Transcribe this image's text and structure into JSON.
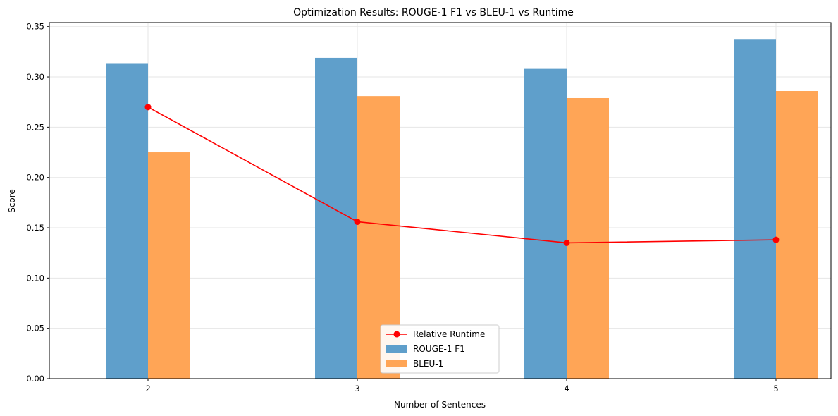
{
  "chart_data": {
    "type": "bar",
    "title": "Optimization Results: ROUGE-1 F1 vs BLEU-1 vs Runtime",
    "xlabel": "Number of Sentences",
    "ylabel": "Score",
    "categories": [
      "2",
      "3",
      "4",
      "5"
    ],
    "ylim": [
      0,
      0.354
    ],
    "yticks": [
      "0.00",
      "0.05",
      "0.10",
      "0.15",
      "0.20",
      "0.25",
      "0.30",
      "0.35"
    ],
    "grid": true,
    "legend_position": "bottom-center",
    "series": [
      {
        "name": "ROUGE-1 F1",
        "type": "bar",
        "color": "#5f9fcb",
        "values": [
          0.313,
          0.319,
          0.308,
          0.337
        ]
      },
      {
        "name": "BLEU-1",
        "type": "bar",
        "color": "#ffa556",
        "values": [
          0.225,
          0.281,
          0.279,
          0.286
        ]
      },
      {
        "name": "Relative Runtime",
        "type": "line",
        "color": "#ff0000",
        "marker": "circle",
        "values": [
          0.27,
          0.156,
          0.135,
          0.138
        ]
      }
    ]
  }
}
